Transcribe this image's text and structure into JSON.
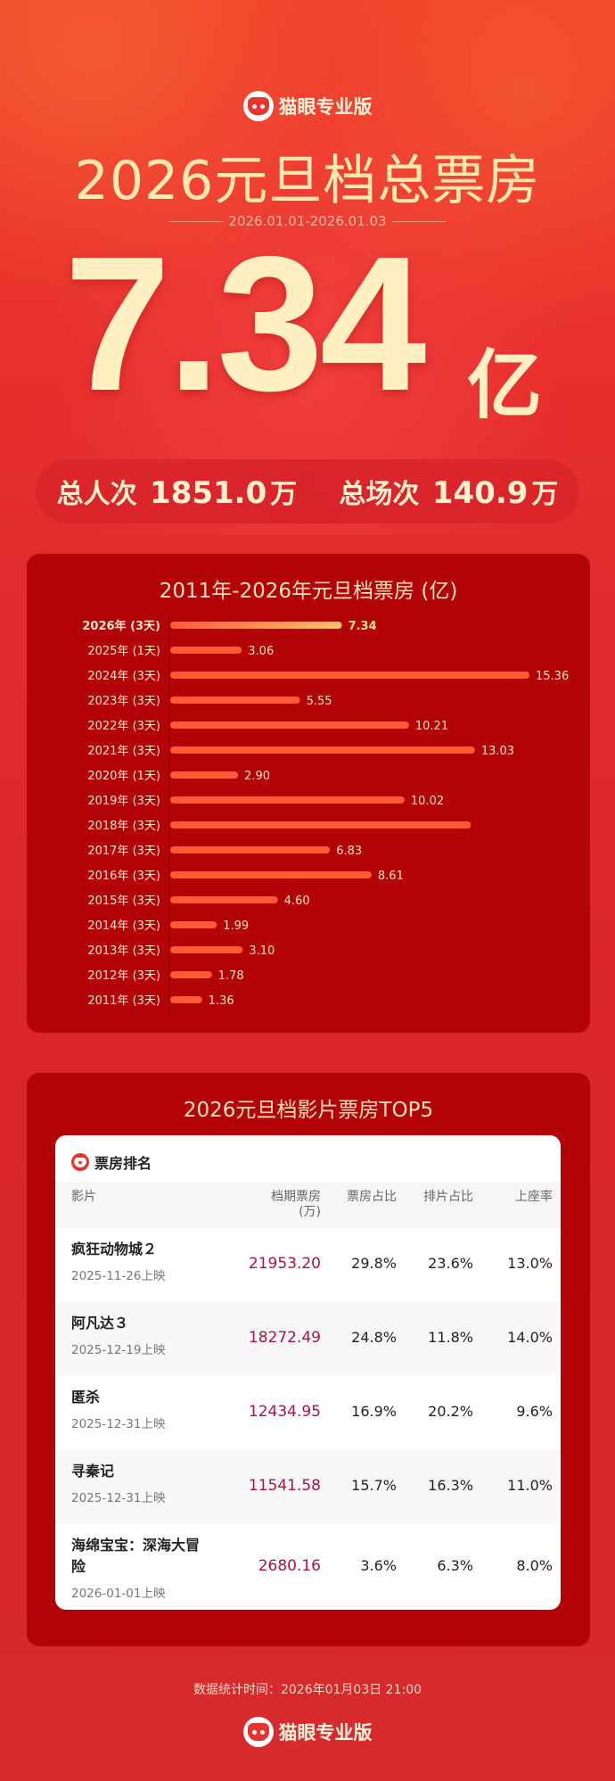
{
  "header": {
    "brand": "猫眼专业版",
    "title": "2026元旦档总票房",
    "date_range": "2026.01.01-2026.01.03",
    "total": "7.34",
    "total_unit": "亿",
    "stats": [
      {
        "label": "总人次",
        "value": "1851.0",
        "unit": "万"
      },
      {
        "label": "总场次",
        "value": "140.9",
        "unit": "万"
      }
    ]
  },
  "chart_data": {
    "type": "bar",
    "orientation": "horizontal",
    "title": "2011年-2026年元旦档票房 (亿)",
    "categories": [
      "2026年 (3天)",
      "2025年 (1天)",
      "2024年 (3天)",
      "2023年 (3天)",
      "2022年 (3天)",
      "2021年 (3天)",
      "2020年 (1天)",
      "2019年 (3天)",
      "2018年 (3天)",
      "2017年 (3天)",
      "2016年 (3天)",
      "2015年 (3天)",
      "2014年 (3天)",
      "2013年 (3天)",
      "2012年 (3天)",
      "2011年 (3天)"
    ],
    "values": [
      7.34,
      3.06,
      15.36,
      5.55,
      10.21,
      13.03,
      2.9,
      10.02,
      12.86,
      6.83,
      8.61,
      4.6,
      1.99,
      3.1,
      1.78,
      1.36
    ],
    "labels": [
      "7.34",
      "3.06",
      "15.36",
      "5.55",
      "10.21",
      "13.03",
      "2.90",
      "10.02",
      "",
      "6.83",
      "8.61",
      "4.60",
      "1.99",
      "3.10",
      "1.78",
      "1.36"
    ],
    "highlight_index": 0,
    "xlim": [
      0,
      15.36
    ],
    "grid": false,
    "colors": {
      "bar": "#ff5a36",
      "highlight_end": "#ffc46a",
      "label": "#ffe2bf"
    }
  },
  "movies": {
    "panel_title": "2026元旦档影片票房TOP5",
    "card_title": "票房排名",
    "columns": [
      "影片",
      "档期票房\n(万)",
      "票房占比",
      "排片占比",
      "上座率"
    ],
    "rows": [
      {
        "name": "疯狂动物城２",
        "release": "2025-11-26上映",
        "box_office": "21953.20",
        "bo_share": "29.8%",
        "show_share": "23.6%",
        "occupancy": "13.0%"
      },
      {
        "name": "阿凡达３",
        "release": "2025-12-19上映",
        "box_office": "18272.49",
        "bo_share": "24.8%",
        "show_share": "11.8%",
        "occupancy": "14.0%"
      },
      {
        "name": "匿杀",
        "release": "2025-12-31上映",
        "box_office": "12434.95",
        "bo_share": "16.9%",
        "show_share": "20.2%",
        "occupancy": "9.6%"
      },
      {
        "name": "寻秦记",
        "release": "2025-12-31上映",
        "box_office": "11541.58",
        "bo_share": "15.7%",
        "show_share": "16.3%",
        "occupancy": "11.0%"
      },
      {
        "name": "海绵宝宝：深海大冒险",
        "release": "2026-01-01上映",
        "box_office": "2680.16",
        "bo_share": "3.6%",
        "show_share": "6.3%",
        "occupancy": "8.0%"
      }
    ]
  },
  "footer": {
    "stat_time": "数据统计时间：2026年01月03日 21:00",
    "brand": "猫眼专业版"
  }
}
